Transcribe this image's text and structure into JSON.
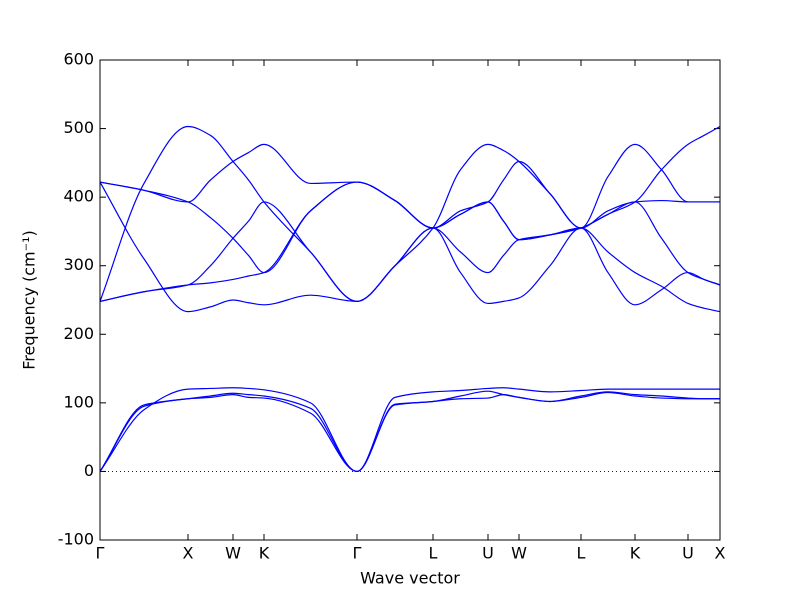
{
  "chart_data": {
    "type": "line",
    "xlabel": "Wave vector",
    "ylabel": "Frequency (cm⁻¹)",
    "x": [
      0,
      0.44,
      0.88,
      1.105,
      1.33,
      1.485,
      1.64,
      2.105,
      2.57,
      2.95,
      3.33,
      3.605,
      3.88,
      4.035,
      4.19,
      4.5,
      4.81,
      5.08,
      5.35,
      5.615,
      5.88,
      6.04,
      6.2
    ],
    "xlim": [
      0,
      6.2
    ],
    "xticks": [
      {
        "value": 0,
        "label": "Γ"
      },
      {
        "value": 0.88,
        "label": "X"
      },
      {
        "value": 1.33,
        "label": "W"
      },
      {
        "value": 1.64,
        "label": "K"
      },
      {
        "value": 2.57,
        "label": "Γ"
      },
      {
        "value": 3.33,
        "label": "L"
      },
      {
        "value": 3.88,
        "label": "U"
      },
      {
        "value": 4.19,
        "label": "W"
      },
      {
        "value": 4.81,
        "label": "L"
      },
      {
        "value": 5.35,
        "label": "K"
      },
      {
        "value": 5.88,
        "label": "U"
      },
      {
        "value": 6.2,
        "label": "X"
      }
    ],
    "ylim": [
      -100,
      600
    ],
    "yticks": [
      -100,
      0,
      100,
      200,
      300,
      400,
      500,
      600
    ],
    "hline": 0,
    "series": [
      {
        "color": "#0000ff",
        "values": [
          0,
          95,
          106,
          108,
          112,
          108,
          107,
          85,
          0,
          97,
          102,
          106,
          107,
          112,
          108,
          102,
          108,
          115,
          110,
          107,
          106,
          106,
          106
        ]
      },
      {
        "color": "#0000ff",
        "values": [
          0,
          97,
          106,
          110,
          114,
          112,
          110,
          92,
          0,
          98,
          102,
          110,
          117,
          112,
          108,
          102,
          110,
          116,
          112,
          110,
          107,
          106,
          106
        ]
      },
      {
        "color": "#0000ff",
        "values": [
          0,
          90,
          120,
          121,
          122,
          121,
          119,
          100,
          0,
          108,
          116,
          118,
          121,
          122,
          120,
          116,
          118,
          120,
          120,
          120,
          120,
          120,
          120
        ]
      },
      {
        "color": "#0000ff",
        "values": [
          248,
          420,
          503,
          490,
          452,
          425,
          393,
          320,
          248,
          300,
          355,
          440,
          477,
          468,
          452,
          405,
          355,
          430,
          477,
          440,
          393,
          393,
          393
        ]
      },
      {
        "color": "#0000ff",
        "values": [
          422,
          410,
          393,
          425,
          452,
          465,
          477,
          420,
          422,
          395,
          355,
          380,
          393,
          425,
          452,
          405,
          355,
          380,
          393,
          395,
          393,
          393,
          393
        ]
      },
      {
        "color": "#0000ff",
        "values": [
          422,
          410,
          393,
          370,
          340,
          315,
          290,
          380,
          422,
          395,
          355,
          375,
          393,
          365,
          338,
          345,
          355,
          375,
          393,
          440,
          477,
          490,
          503
        ]
      },
      {
        "color": "#0000ff",
        "values": [
          422,
          310,
          233,
          240,
          250,
          246,
          243,
          257,
          248,
          300,
          355,
          290,
          245,
          248,
          253,
          300,
          355,
          290,
          243,
          265,
          290,
          280,
          272
        ]
      },
      {
        "color": "#0000ff",
        "values": [
          248,
          262,
          272,
          300,
          340,
          365,
          393,
          320,
          248,
          300,
          355,
          320,
          290,
          315,
          338,
          345,
          355,
          320,
          290,
          270,
          245,
          238,
          233
        ]
      },
      {
        "color": "#0000ff",
        "values": [
          248,
          262,
          272,
          275,
          280,
          285,
          290,
          380,
          422,
          395,
          355,
          375,
          393,
          365,
          338,
          345,
          355,
          375,
          393,
          340,
          290,
          280,
          272
        ]
      }
    ]
  }
}
